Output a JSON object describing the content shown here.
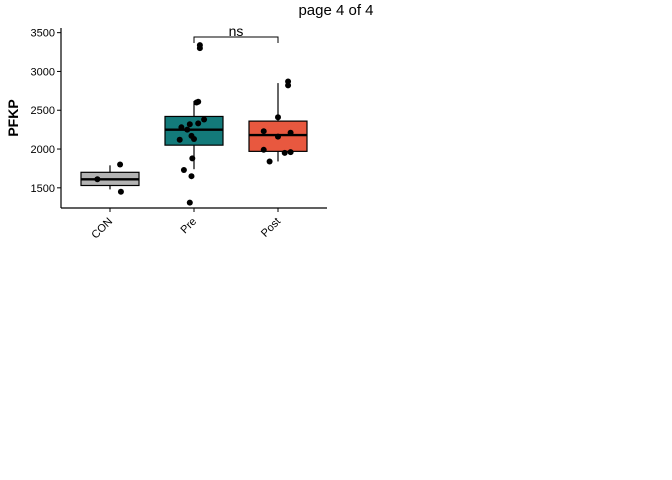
{
  "page_label": "page 4 of 4",
  "chart_data": {
    "type": "box",
    "title": "",
    "xlabel": "",
    "ylabel": "PFKP",
    "ylim": [
      1240,
      3560
    ],
    "yticks": [
      1500,
      2000,
      2500,
      3000,
      3500
    ],
    "categories": [
      "CON",
      "Pre",
      "Post"
    ],
    "colors": {
      "CON": "#b3b3b3",
      "Pre": "#137a7a",
      "Post": "#e8583f"
    },
    "boxes": [
      {
        "group": "CON",
        "whisker_low": 1480,
        "q1": 1530,
        "median": 1610,
        "q3": 1700,
        "whisker_high": 1790
      },
      {
        "group": "Pre",
        "whisker_low": 1740,
        "q1": 2050,
        "median": 2250,
        "q3": 2420,
        "whisker_high": 2620
      },
      {
        "group": "Post",
        "whisker_low": 1840,
        "q1": 1970,
        "median": 2180,
        "q3": 2360,
        "whisker_high": 2850
      }
    ],
    "points": {
      "CON": [
        [
          -0.15,
          1610
        ],
        [
          0.12,
          1800
        ],
        [
          0.13,
          1450
        ]
      ],
      "Pre": [
        [
          0.07,
          3340
        ],
        [
          0.07,
          3300
        ],
        [
          0.05,
          2610
        ],
        [
          0.03,
          2600
        ],
        [
          0.12,
          2380
        ],
        [
          0.05,
          2330
        ],
        [
          -0.05,
          2320
        ],
        [
          -0.15,
          2280
        ],
        [
          -0.08,
          2250
        ],
        [
          -0.03,
          2170
        ],
        [
          0.0,
          2130
        ],
        [
          -0.17,
          2120
        ],
        [
          -0.02,
          1880
        ],
        [
          -0.12,
          1730
        ],
        [
          -0.03,
          1650
        ],
        [
          -0.05,
          1310
        ]
      ],
      "Post": [
        [
          0.12,
          2870
        ],
        [
          0.12,
          2820
        ],
        [
          0.0,
          2410
        ],
        [
          -0.17,
          2230
        ],
        [
          0.15,
          2210
        ],
        [
          0.0,
          2160
        ],
        [
          -0.17,
          1990
        ],
        [
          0.08,
          1950
        ],
        [
          0.15,
          1960
        ],
        [
          -0.1,
          1840
        ]
      ]
    },
    "comparisons": [
      {
        "from": "Pre",
        "to": "Post",
        "label": "ns"
      }
    ]
  }
}
